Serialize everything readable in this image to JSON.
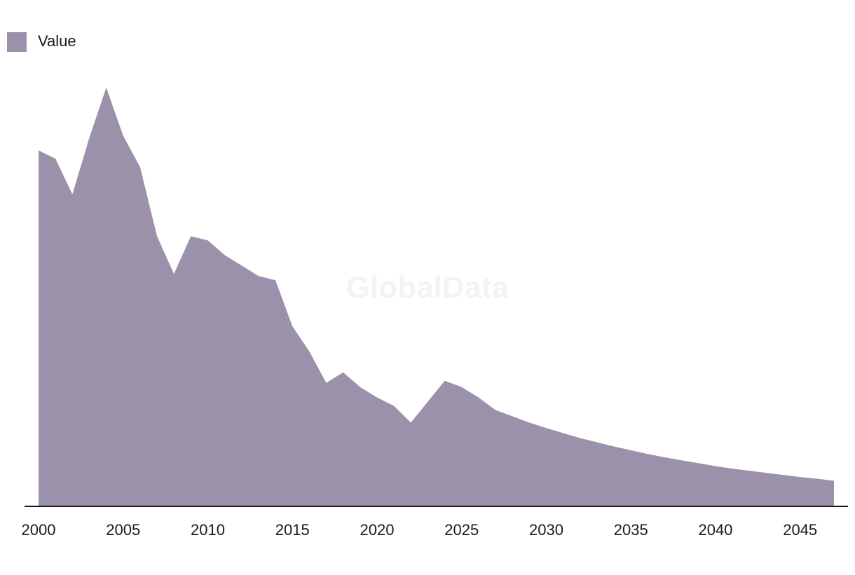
{
  "chart_data": {
    "type": "area",
    "title": "",
    "xlabel": "",
    "ylabel": "",
    "series": [
      {
        "name": "Value",
        "color": "#9b91aa",
        "x": [
          2000,
          2001,
          2002,
          2003,
          2004,
          2005,
          2006,
          2007,
          2008,
          2009,
          2010,
          2011,
          2012,
          2013,
          2014,
          2015,
          2016,
          2017,
          2018,
          2019,
          2020,
          2021,
          2022,
          2023,
          2024,
          2025,
          2026,
          2027,
          2028,
          2029,
          2030,
          2031,
          2032,
          2033,
          2034,
          2035,
          2036,
          2037,
          2038,
          2039,
          2040,
          2041,
          2042,
          2043,
          2044,
          2045,
          2046,
          2047
        ],
        "values": [
          85.0,
          83.0,
          74.5,
          88.0,
          100.0,
          88.5,
          81.0,
          64.5,
          55.5,
          64.5,
          63.5,
          60.0,
          57.5,
          55.0,
          54.0,
          43.0,
          37.0,
          29.5,
          32.0,
          28.5,
          26.0,
          24.0,
          20.0,
          25.0,
          30.0,
          28.5,
          26.0,
          23.0,
          21.5,
          20.0,
          18.7,
          17.5,
          16.3,
          15.3,
          14.3,
          13.4,
          12.5,
          11.7,
          11.0,
          10.3,
          9.6,
          9.0,
          8.5,
          8.0,
          7.5,
          7.0,
          6.6,
          6.1
        ]
      }
    ],
    "x_ticks": [
      "2000",
      "2005",
      "2010",
      "2015",
      "2020",
      "2025",
      "2030",
      "2035",
      "2040",
      "2045"
    ],
    "xlim": [
      2000,
      2047
    ],
    "ylim": [
      0,
      100
    ],
    "y_axis_visible": false,
    "grid": false,
    "legend": {
      "position": "top-left",
      "entries": [
        "Value"
      ]
    },
    "watermark": "GlobalData",
    "colors": {
      "area": "#9b91aa",
      "axis": "#1a1a1a",
      "text": "#1a1a1a",
      "watermark": "#f3f3f3"
    }
  }
}
